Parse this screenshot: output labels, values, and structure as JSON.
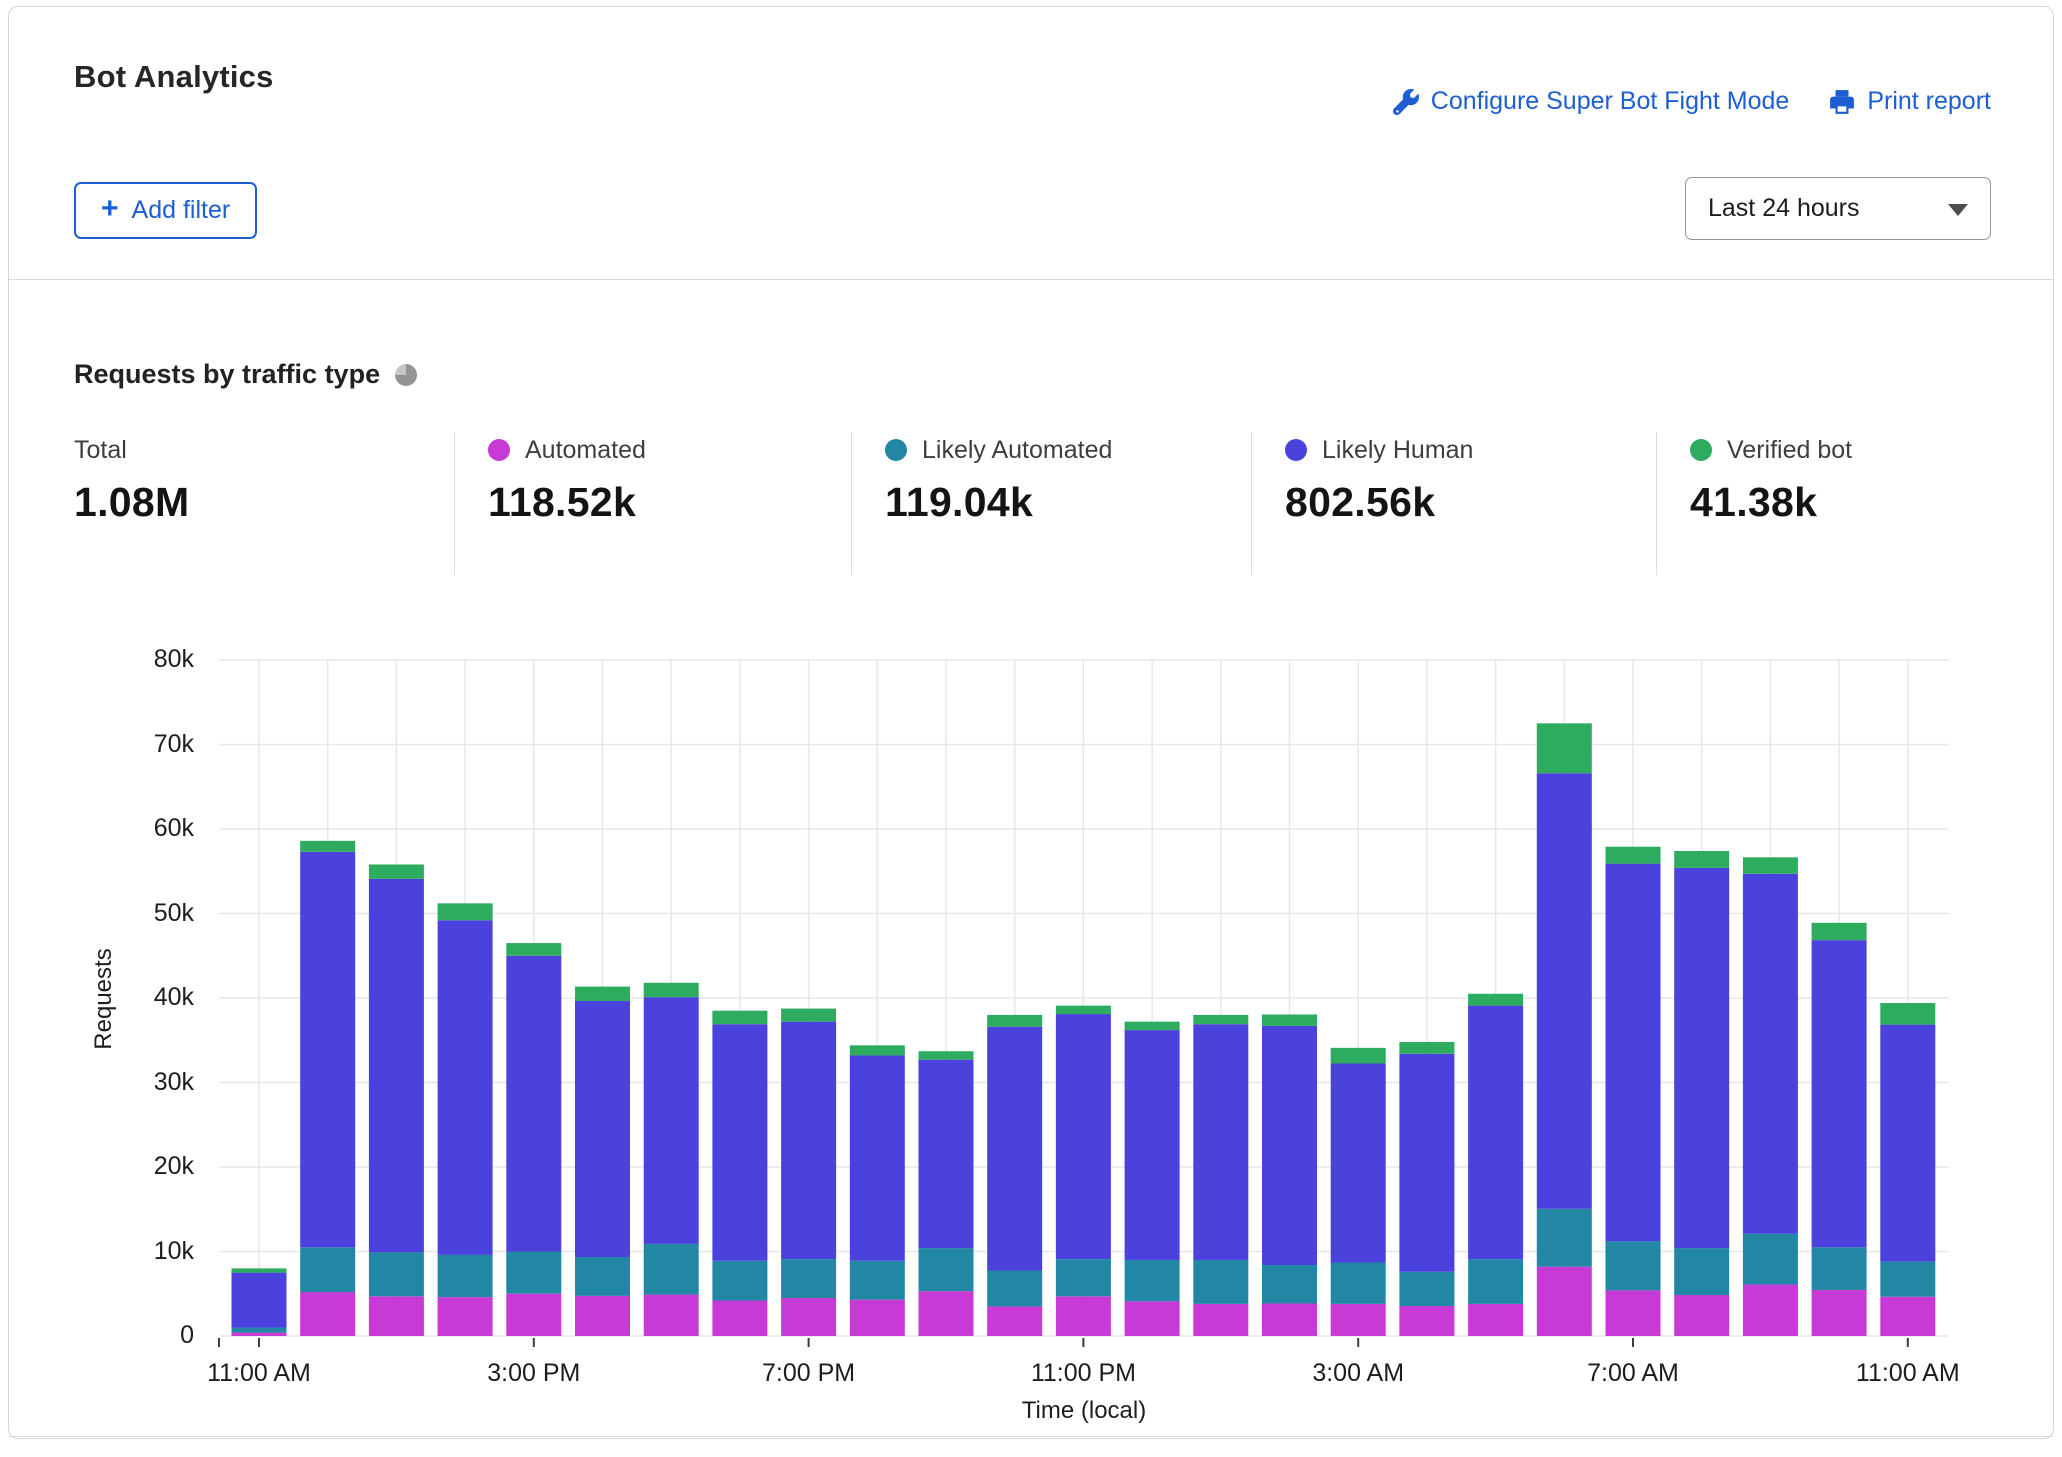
{
  "header": {
    "title": "Bot Analytics",
    "configure_link": "Configure Super Bot Fight Mode",
    "print_link": "Print report",
    "add_filter_label": "Add filter",
    "time_range_value": "Last 24 hours"
  },
  "section": {
    "heading": "Requests by traffic type"
  },
  "stats": [
    {
      "id": "total",
      "label": "Total",
      "value": "1.08M",
      "color": null
    },
    {
      "id": "automated",
      "label": "Automated",
      "value": "118.52k",
      "color": "#c73ad6"
    },
    {
      "id": "likely-automated",
      "label": "Likely Automated",
      "value": "119.04k",
      "color": "#2187a5"
    },
    {
      "id": "likely-human",
      "label": "Likely Human",
      "value": "802.56k",
      "color": "#4b41dd"
    },
    {
      "id": "verified-bot",
      "label": "Verified bot",
      "value": "41.38k",
      "color": "#2dab5e"
    }
  ],
  "colors": {
    "accent_blue": "#1d5fd3",
    "grid": "#e7e7e7",
    "axis_tick": "#3c3c3c",
    "axis_text": "#1d1d1d"
  },
  "chart_data": {
    "type": "bar",
    "stacked": true,
    "title": "Requests by traffic type",
    "xlabel": "Time (local)",
    "ylabel": "Requests",
    "ylim": [
      0,
      80000
    ],
    "y_tick_step": 10000,
    "y_tick_labels": [
      "0",
      "10k",
      "20k",
      "30k",
      "40k",
      "50k",
      "60k",
      "70k",
      "80k"
    ],
    "grid": true,
    "legend_position": "top",
    "values_unit": "thousands of requests",
    "categories": [
      "11:00 AM",
      "12:00 PM",
      "1:00 PM",
      "2:00 PM",
      "3:00 PM",
      "4:00 PM",
      "5:00 PM",
      "6:00 PM",
      "7:00 PM",
      "8:00 PM",
      "9:00 PM",
      "10:00 PM",
      "11:00 PM",
      "12:00 AM",
      "1:00 AM",
      "2:00 AM",
      "3:00 AM",
      "4:00 AM",
      "5:00 AM",
      "6:00 AM",
      "7:00 AM",
      "8:00 AM",
      "9:00 AM",
      "10:00 AM",
      "11:00 AM"
    ],
    "x_tick_every": 4,
    "x_tick_labels": [
      "11:00 AM",
      "3:00 PM",
      "7:00 PM",
      "11:00 PM",
      "3:00 AM",
      "7:00 AM",
      "11:00 AM"
    ],
    "series": [
      {
        "id": "automated",
        "name": "Automated",
        "color": "#c73ad6",
        "values": [
          0.4,
          5.2,
          4.7,
          4.6,
          5.0,
          4.75,
          4.9,
          4.2,
          4.5,
          4.3,
          5.3,
          3.5,
          4.7,
          4.1,
          3.8,
          3.85,
          3.8,
          3.55,
          3.8,
          8.2,
          5.4,
          4.85,
          6.1,
          5.45,
          4.65
        ]
      },
      {
        "id": "likely-automated",
        "name": "Likely Automated",
        "color": "#2187a5",
        "values": [
          0.6,
          5.3,
          5.2,
          5.0,
          5.0,
          4.6,
          6.0,
          4.7,
          4.6,
          4.6,
          5.1,
          4.25,
          4.4,
          4.9,
          5.2,
          4.55,
          4.9,
          4.05,
          5.3,
          6.85,
          5.8,
          5.55,
          6.0,
          5.05,
          4.15
        ]
      },
      {
        "id": "likely-human",
        "name": "Likely Human",
        "color": "#4b41dd",
        "values": [
          6.5,
          46.8,
          44.2,
          39.6,
          35.0,
          30.3,
          29.2,
          28.0,
          28.1,
          24.3,
          22.3,
          28.85,
          29.0,
          27.2,
          27.9,
          28.3,
          23.55,
          25.8,
          30.0,
          51.55,
          44.7,
          45.0,
          42.6,
          36.35,
          28.05
        ]
      },
      {
        "id": "verified-bot",
        "name": "Verified bot",
        "color": "#2dab5e",
        "values": [
          0.5,
          1.3,
          1.7,
          2.0,
          1.5,
          1.7,
          1.7,
          1.6,
          1.55,
          1.2,
          1.0,
          1.4,
          1.0,
          1.0,
          1.1,
          1.35,
          1.85,
          1.4,
          1.4,
          5.9,
          2.0,
          2.0,
          1.95,
          2.05,
          2.55
        ]
      }
    ]
  }
}
